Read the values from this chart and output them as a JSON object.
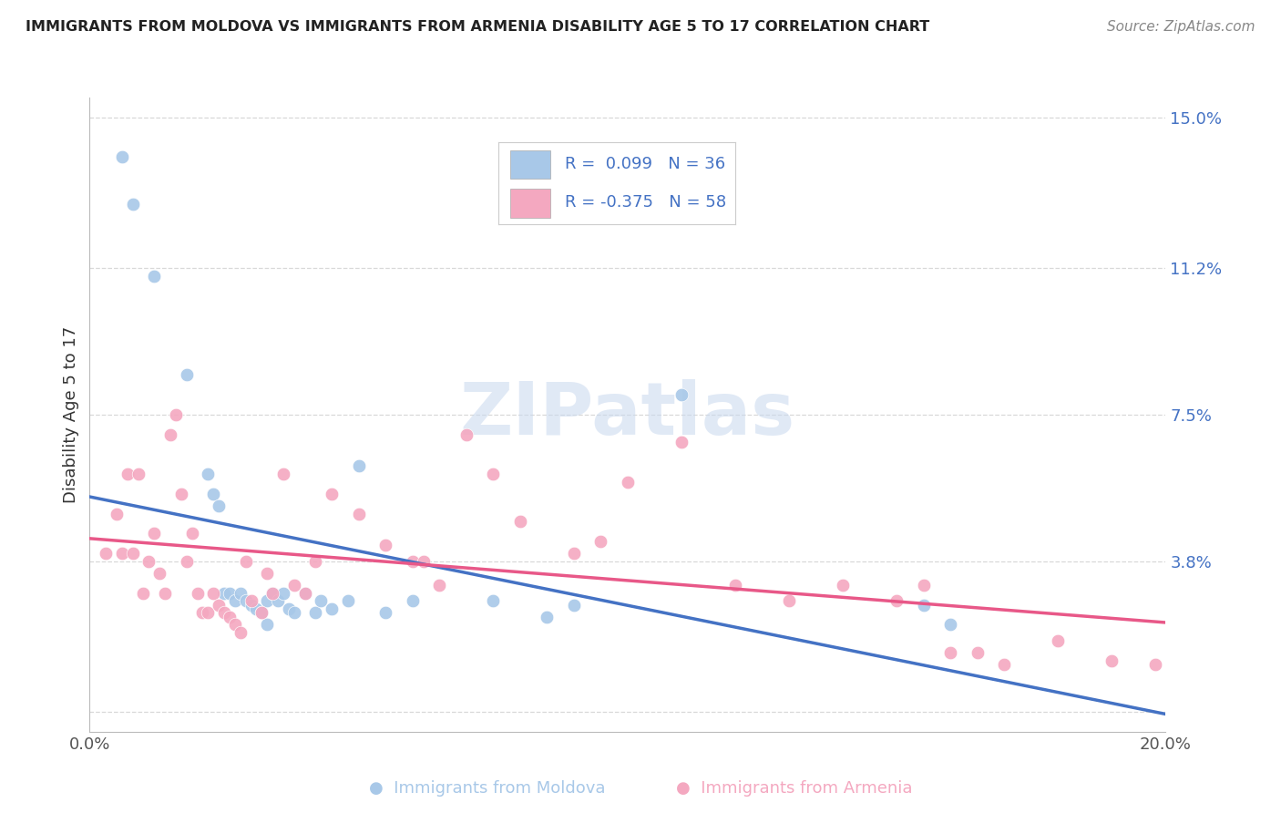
{
  "title": "IMMIGRANTS FROM MOLDOVA VS IMMIGRANTS FROM ARMENIA DISABILITY AGE 5 TO 17 CORRELATION CHART",
  "source": "Source: ZipAtlas.com",
  "ylabel": "Disability Age 5 to 17",
  "xlim": [
    0.0,
    0.2
  ],
  "ylim": [
    -0.005,
    0.155
  ],
  "yticks": [
    0.0,
    0.038,
    0.075,
    0.112,
    0.15
  ],
  "ytick_labels": [
    "",
    "3.8%",
    "7.5%",
    "11.2%",
    "15.0%"
  ],
  "xticks": [
    0.0,
    0.05,
    0.1,
    0.15,
    0.2
  ],
  "xtick_labels": [
    "0.0%",
    "",
    "",
    "",
    "20.0%"
  ],
  "color_moldova": "#a8c8e8",
  "color_armenia": "#f4a8c0",
  "color_line_moldova": "#4472c4",
  "color_line_armenia": "#e85888",
  "background_color": "#ffffff",
  "grid_color": "#d8d8d8",
  "label_color": "#4472c4",
  "moldova_x": [
    0.006,
    0.008,
    0.012,
    0.018,
    0.022,
    0.023,
    0.024,
    0.025,
    0.026,
    0.027,
    0.028,
    0.029,
    0.03,
    0.031,
    0.032,
    0.033,
    0.033,
    0.034,
    0.035,
    0.036,
    0.037,
    0.038,
    0.04,
    0.042,
    0.043,
    0.045,
    0.048,
    0.05,
    0.055,
    0.06,
    0.075,
    0.085,
    0.09,
    0.11,
    0.155,
    0.16
  ],
  "moldova_y": [
    0.14,
    0.128,
    0.11,
    0.085,
    0.06,
    0.055,
    0.052,
    0.03,
    0.03,
    0.028,
    0.03,
    0.028,
    0.027,
    0.026,
    0.025,
    0.028,
    0.022,
    0.03,
    0.028,
    0.03,
    0.026,
    0.025,
    0.03,
    0.025,
    0.028,
    0.026,
    0.028,
    0.062,
    0.025,
    0.028,
    0.028,
    0.024,
    0.027,
    0.08,
    0.027,
    0.022
  ],
  "armenia_x": [
    0.003,
    0.005,
    0.006,
    0.007,
    0.008,
    0.009,
    0.01,
    0.011,
    0.012,
    0.013,
    0.014,
    0.015,
    0.016,
    0.017,
    0.018,
    0.019,
    0.02,
    0.021,
    0.022,
    0.023,
    0.024,
    0.025,
    0.026,
    0.027,
    0.028,
    0.029,
    0.03,
    0.032,
    0.033,
    0.034,
    0.036,
    0.038,
    0.04,
    0.042,
    0.045,
    0.05,
    0.055,
    0.06,
    0.062,
    0.065,
    0.07,
    0.075,
    0.08,
    0.09,
    0.095,
    0.1,
    0.11,
    0.12,
    0.13,
    0.14,
    0.15,
    0.155,
    0.16,
    0.165,
    0.17,
    0.18,
    0.19,
    0.198
  ],
  "armenia_y": [
    0.04,
    0.05,
    0.04,
    0.06,
    0.04,
    0.06,
    0.03,
    0.038,
    0.045,
    0.035,
    0.03,
    0.07,
    0.075,
    0.055,
    0.038,
    0.045,
    0.03,
    0.025,
    0.025,
    0.03,
    0.027,
    0.025,
    0.024,
    0.022,
    0.02,
    0.038,
    0.028,
    0.025,
    0.035,
    0.03,
    0.06,
    0.032,
    0.03,
    0.038,
    0.055,
    0.05,
    0.042,
    0.038,
    0.038,
    0.032,
    0.07,
    0.06,
    0.048,
    0.04,
    0.043,
    0.058,
    0.068,
    0.032,
    0.028,
    0.032,
    0.028,
    0.032,
    0.015,
    0.015,
    0.012,
    0.018,
    0.013,
    0.012
  ],
  "legend_moldova_R": "R =  0.099",
  "legend_moldova_N": "N = 36",
  "legend_armenia_R": "R = -0.375",
  "legend_armenia_N": "N = 58",
  "watermark_text": "ZIPatlas",
  "bottom_label_moldova": "Immigrants from Moldova",
  "bottom_label_armenia": "Immigrants from Armenia"
}
